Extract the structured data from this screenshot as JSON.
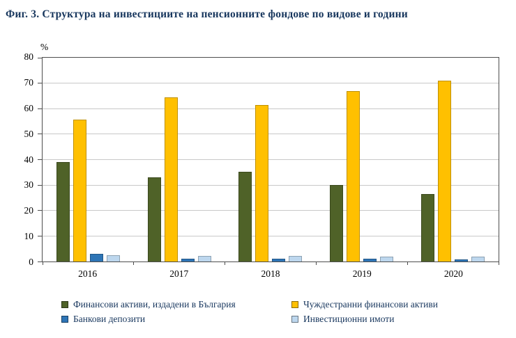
{
  "title": "Фиг. 3. Структура  на инвестициите на пенсионните фондове по видове и години",
  "chart_data": {
    "type": "bar",
    "title": "Фиг. 3. Структура  на инвестициите на пенсионните фондове по видове и години",
    "categories": [
      "2016",
      "2017",
      "2018",
      "2019",
      "2020"
    ],
    "series": [
      {
        "name": "Финансови активи, издадени в България",
        "color": "#4F6228",
        "values": [
          39,
          33,
          35.3,
          30,
          26.5
        ]
      },
      {
        "name": "Чуждестранни финансови активи",
        "color": "#FFC000",
        "values": [
          55.6,
          64.5,
          61.5,
          67,
          71
        ]
      },
      {
        "name": "Банкови депозити",
        "color": "#2E75B6",
        "values": [
          3,
          1,
          1.2,
          1,
          0.8
        ]
      },
      {
        "name": "Инвестиционни имоти",
        "color": "#BDD7EE",
        "values": [
          2.5,
          2.2,
          2.1,
          1.9,
          1.8
        ]
      }
    ],
    "xlabel": "",
    "ylabel": "%",
    "ylim": [
      0,
      80
    ],
    "ytick_step": 10,
    "grid": true,
    "legend_position": "bottom"
  }
}
